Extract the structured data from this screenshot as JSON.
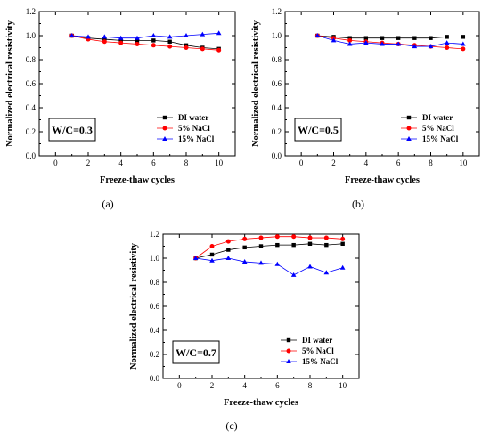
{
  "chart_data": [
    {
      "type": "line",
      "panel_label": "(a)",
      "annotation": "W/C=0.3",
      "xlabel": "Freeze-thaw cycles",
      "ylabel": "Normalized electrical resistivity",
      "xlim": [
        -1,
        11
      ],
      "ylim": [
        0,
        1.2
      ],
      "xticks": [
        0,
        2,
        4,
        6,
        8,
        10
      ],
      "yticks": [
        0.0,
        0.2,
        0.4,
        0.6,
        0.8,
        1.0,
        1.2
      ],
      "legend_position": "bottom-right",
      "x": [
        1,
        2,
        3,
        4,
        5,
        6,
        7,
        8,
        9,
        10
      ],
      "series": [
        {
          "name": "DI water",
          "color": "#000000",
          "marker": "square",
          "values": [
            1.0,
            0.98,
            0.97,
            0.96,
            0.96,
            0.96,
            0.95,
            0.92,
            0.9,
            0.89
          ]
        },
        {
          "name": "5% NaCl",
          "color": "#ff0000",
          "marker": "circle",
          "values": [
            1.0,
            0.97,
            0.95,
            0.94,
            0.93,
            0.92,
            0.91,
            0.9,
            0.89,
            0.88
          ]
        },
        {
          "name": "15% NaCl",
          "color": "#0000ff",
          "marker": "triangle",
          "values": [
            1.0,
            0.99,
            0.99,
            0.98,
            0.98,
            1.0,
            0.99,
            1.0,
            1.01,
            1.02
          ]
        }
      ]
    },
    {
      "type": "line",
      "panel_label": "(b)",
      "annotation": "W/C=0.5",
      "xlabel": "Freeze-thaw cycles",
      "ylabel": "Normalized electrical resistivity",
      "xlim": [
        -1,
        11
      ],
      "ylim": [
        0,
        1.2
      ],
      "xticks": [
        0,
        2,
        4,
        6,
        8,
        10
      ],
      "yticks": [
        0.0,
        0.2,
        0.4,
        0.6,
        0.8,
        1.0,
        1.2
      ],
      "legend_position": "bottom-right",
      "x": [
        1,
        2,
        3,
        4,
        5,
        6,
        7,
        8,
        9,
        10
      ],
      "series": [
        {
          "name": "DI water",
          "color": "#000000",
          "marker": "square",
          "values": [
            1.0,
            0.99,
            0.98,
            0.98,
            0.98,
            0.98,
            0.98,
            0.98,
            0.99,
            0.99
          ]
        },
        {
          "name": "5% NaCl",
          "color": "#ff0000",
          "marker": "circle",
          "values": [
            1.0,
            0.98,
            0.96,
            0.95,
            0.94,
            0.93,
            0.92,
            0.91,
            0.9,
            0.89
          ]
        },
        {
          "name": "15% NaCl",
          "color": "#0000ff",
          "marker": "triangle",
          "values": [
            1.0,
            0.96,
            0.93,
            0.94,
            0.93,
            0.93,
            0.91,
            0.91,
            0.94,
            0.93
          ]
        }
      ]
    },
    {
      "type": "line",
      "panel_label": "(c)",
      "annotation": "W/C=0.7",
      "xlabel": "Freeze-thaw cycles",
      "ylabel": "Normalized electrical resistivity",
      "xlim": [
        -1,
        11
      ],
      "ylim": [
        0,
        1.2
      ],
      "xticks": [
        0,
        2,
        4,
        6,
        8,
        10
      ],
      "yticks": [
        0.0,
        0.2,
        0.4,
        0.6,
        0.8,
        1.0,
        1.2
      ],
      "legend_position": "bottom-right",
      "x": [
        1,
        2,
        3,
        4,
        5,
        6,
        7,
        8,
        9,
        10
      ],
      "series": [
        {
          "name": "DI water",
          "color": "#000000",
          "marker": "square",
          "values": [
            1.0,
            1.03,
            1.07,
            1.09,
            1.1,
            1.11,
            1.11,
            1.12,
            1.11,
            1.12
          ]
        },
        {
          "name": "5% NaCl",
          "color": "#ff0000",
          "marker": "circle",
          "values": [
            1.0,
            1.1,
            1.14,
            1.16,
            1.17,
            1.18,
            1.18,
            1.17,
            1.17,
            1.16
          ]
        },
        {
          "name": "15% NaCl",
          "color": "#0000ff",
          "marker": "triangle",
          "values": [
            1.0,
            0.98,
            1.0,
            0.97,
            0.96,
            0.95,
            0.86,
            0.93,
            0.88,
            0.92
          ]
        }
      ]
    }
  ]
}
